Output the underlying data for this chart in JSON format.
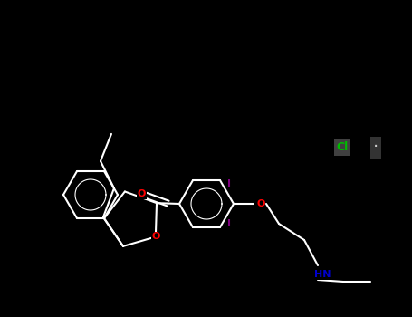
{
  "bg": "#000000",
  "bond_color": "#ffffff",
  "bw": 1.5,
  "figsize": [
    4.55,
    3.5
  ],
  "dpi": 100,
  "colors": {
    "O": "#ff0000",
    "I": "#800080",
    "N": "#0000cc",
    "Cl": "#00bb00",
    "C": "#cccccc",
    "H": "#aaaaaa",
    "white": "#ffffff"
  },
  "xlim": [
    0,
    455
  ],
  "ylim": [
    0,
    350
  ]
}
